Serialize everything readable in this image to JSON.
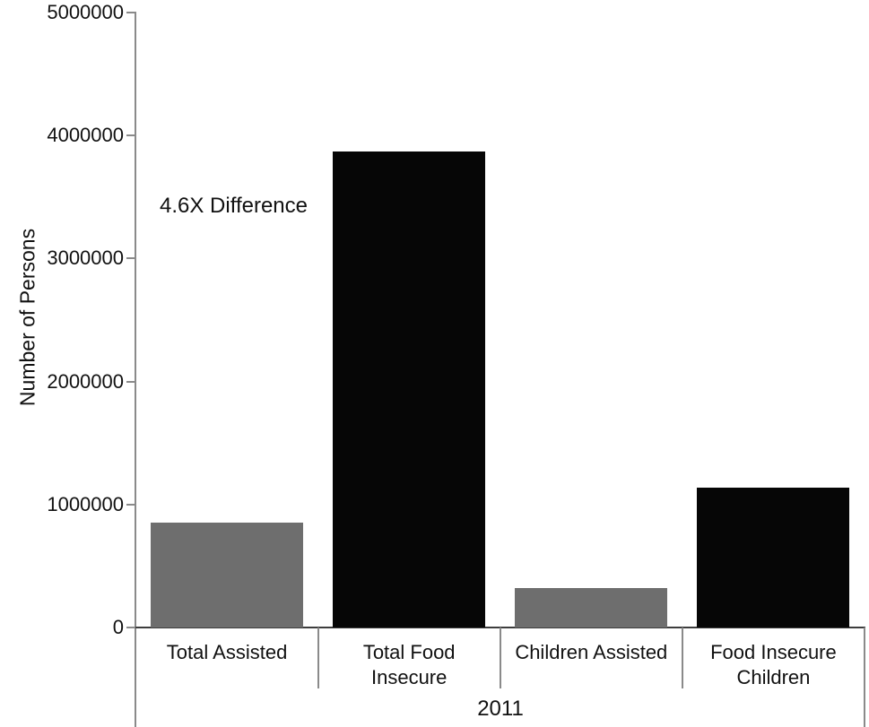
{
  "chart_data": {
    "type": "bar",
    "title": "",
    "xlabel": "2011",
    "ylabel": "Number of Persons",
    "categories": [
      "Total Assisted",
      "Total Food Insecure",
      "Children Assisted",
      "Food Insecure Children"
    ],
    "category_label_lines": [
      "Total Assisted",
      "Total Food\nInsecure",
      "Children Assisted",
      "Food Insecure\nChildren"
    ],
    "values": [
      850000,
      3870000,
      320000,
      1140000
    ],
    "series": [
      {
        "name": "Assisted (gray bars)",
        "values": [
          850000,
          320000
        ]
      },
      {
        "name": "Food insecure (black bars)",
        "values": [
          3870000,
          1140000
        ]
      }
    ],
    "bar_colors": [
      "#6e6e6e",
      "#060606",
      "#6e6e6e",
      "#060606"
    ],
    "ylim": [
      0,
      5000000
    ],
    "yticks": [
      0,
      1000000,
      2000000,
      3000000,
      4000000,
      5000000
    ],
    "ytick_labels": [
      "0",
      "1000000",
      "2000000",
      "3000000",
      "4000000",
      "5000000"
    ],
    "annotation": "4.6X Difference",
    "group_label": "2011",
    "legend_position": "none",
    "grid": false
  },
  "colors": {
    "bar_gray": "#6e6e6e",
    "bar_black": "#060606",
    "axis_line": "#8a8a8a",
    "baseline": "#3d3d3d",
    "separator": "#8a8a8a",
    "text": "#111111",
    "background": "#ffffff"
  }
}
